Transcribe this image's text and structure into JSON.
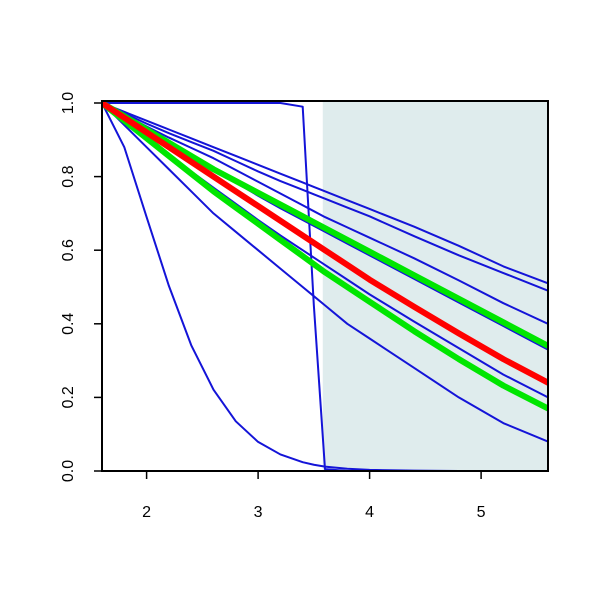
{
  "chart_data": {
    "type": "line",
    "x": [
      1.6,
      1.8,
      2.0,
      2.2,
      2.4,
      2.6,
      2.8,
      3.0,
      3.2,
      3.4,
      3.5,
      3.6,
      3.8,
      4.0,
      4.4,
      4.8,
      5.2,
      5.6
    ],
    "xlim": [
      1.6,
      5.6
    ],
    "xticks": [
      2,
      3,
      4,
      5
    ],
    "ylim": [
      0,
      1
    ],
    "yticks": [
      {
        "value": 0,
        "label": "0.0"
      },
      0.2,
      0.4,
      0.6,
      0.8,
      {
        "value": 1,
        "label": "1.0"
      }
    ],
    "shade": {
      "xlim": [
        3.58,
        5.6
      ],
      "color": "#dfeced"
    },
    "series": [
      {
        "color": "#1414d8",
        "line_width": 2,
        "values": [
          1,
          0.976,
          0.952,
          0.928,
          0.904,
          0.88,
          0.856,
          0.832,
          0.808,
          0.784,
          0.772,
          0.76,
          0.736,
          0.712,
          0.664,
          0.612,
          0.556,
          0.51
        ]
      },
      {
        "color": "#1414d8",
        "line_width": 2,
        "values": [
          1,
          0.972,
          0.944,
          0.918,
          0.894,
          0.87,
          0.842,
          0.814,
          0.788,
          0.764,
          0.752,
          0.74,
          0.716,
          0.692,
          0.638,
          0.586,
          0.538,
          0.49
        ]
      },
      {
        "color": "#1414d8",
        "line_width": 2,
        "values": [
          1,
          0.968,
          0.936,
          0.906,
          0.878,
          0.85,
          0.818,
          0.786,
          0.754,
          0.722,
          0.706,
          0.69,
          0.662,
          0.634,
          0.578,
          0.518,
          0.456,
          0.4
        ]
      },
      {
        "color": "#1414d8",
        "line_width": 2,
        "values": [
          1,
          0.964,
          0.928,
          0.892,
          0.856,
          0.82,
          0.784,
          0.748,
          0.714,
          0.682,
          0.666,
          0.65,
          0.618,
          0.586,
          0.522,
          0.458,
          0.394,
          0.33
        ]
      },
      {
        "color": "#1414d8",
        "line_width": 2,
        "values": [
          1,
          0.952,
          0.904,
          0.858,
          0.814,
          0.77,
          0.726,
          0.682,
          0.64,
          0.6,
          0.58,
          0.56,
          0.52,
          0.48,
          0.406,
          0.334,
          0.262,
          0.2
        ]
      },
      {
        "color": "#1414d8",
        "line_width": 2,
        "values": [
          1,
          0.94,
          0.88,
          0.82,
          0.76,
          0.7,
          0.65,
          0.6,
          0.55,
          0.5,
          0.475,
          0.45,
          0.4,
          0.36,
          0.28,
          0.2,
          0.13,
          0.08
        ]
      },
      {
        "color": "#1414d8",
        "line_width": 2,
        "values": [
          1,
          0.88,
          0.69,
          0.503,
          0.342,
          0.221,
          0.135,
          0.079,
          0.045,
          0.024,
          0.017,
          0.012,
          0.006,
          0.003,
          0.001,
          0,
          0,
          0
        ]
      },
      {
        "color": "#1414d8",
        "line_width": 2,
        "values": [
          1,
          1,
          1,
          1,
          1,
          1,
          1,
          1,
          1,
          0.99,
          0.45,
          0.005,
          0,
          0,
          0,
          0,
          0,
          0
        ]
      },
      {
        "color": "#00e600",
        "line_width": 6,
        "values": [
          1,
          0.964,
          0.928,
          0.892,
          0.856,
          0.82,
          0.788,
          0.756,
          0.724,
          0.692,
          0.676,
          0.66,
          0.628,
          0.596,
          0.532,
          0.468,
          0.404,
          0.34
        ]
      },
      {
        "color": "#00e600",
        "line_width": 6,
        "values": [
          1,
          0.952,
          0.904,
          0.856,
          0.808,
          0.76,
          0.716,
          0.672,
          0.628,
          0.584,
          0.562,
          0.54,
          0.5,
          0.46,
          0.38,
          0.304,
          0.232,
          0.17
        ]
      },
      {
        "color": "#ff0000",
        "line_width": 6,
        "values": [
          1,
          0.96,
          0.92,
          0.88,
          0.84,
          0.8,
          0.76,
          0.72,
          0.68,
          0.64,
          0.62,
          0.6,
          0.56,
          0.52,
          0.446,
          0.374,
          0.304,
          0.24
        ]
      }
    ]
  }
}
